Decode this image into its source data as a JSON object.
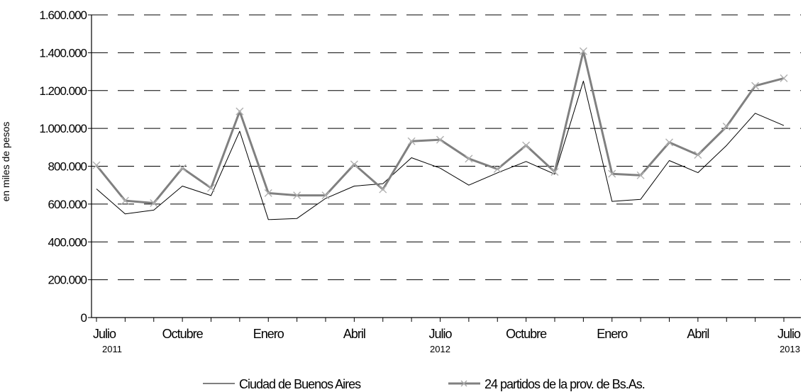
{
  "chart_data": {
    "type": "line",
    "title": "",
    "ylabel": "en miles de pesos",
    "xlabel": "",
    "ylim": [
      0,
      1600000
    ],
    "yticks": [
      0,
      200000,
      400000,
      600000,
      800000,
      1000000,
      1200000,
      1400000,
      1600000
    ],
    "ytick_labels": [
      "0",
      "200.000",
      "400.000",
      "600.000",
      "800.000",
      "1.000.000",
      "1.200.000",
      "1.400.000",
      "1.600.000"
    ],
    "x": [
      "2011-07",
      "2011-08",
      "2011-09",
      "2011-10",
      "2011-11",
      "2011-12",
      "2012-01",
      "2012-02",
      "2012-03",
      "2012-04",
      "2012-05",
      "2012-06",
      "2012-07",
      "2012-08",
      "2012-09",
      "2012-10",
      "2012-11",
      "2012-12",
      "2013-01",
      "2013-02",
      "2013-03",
      "2013-04",
      "2013-05",
      "2013-06",
      "2013-07"
    ],
    "x_tick_labels": [
      {
        "index": 0,
        "label": "Julio",
        "year": "2011"
      },
      {
        "index": 3,
        "label": "Octubre",
        "year": ""
      },
      {
        "index": 6,
        "label": "Enero",
        "year": ""
      },
      {
        "index": 9,
        "label": "Abril",
        "year": ""
      },
      {
        "index": 12,
        "label": "Julio",
        "year": "2012"
      },
      {
        "index": 15,
        "label": "Octubre",
        "year": ""
      },
      {
        "index": 18,
        "label": "Enero",
        "year": ""
      },
      {
        "index": 21,
        "label": "Abril",
        "year": ""
      },
      {
        "index": 24,
        "label": "Julio",
        "year": "2013"
      }
    ],
    "grid": "horizontal dashed",
    "legend_position": "bottom",
    "series": [
      {
        "name": "Ciudad de Buenos Aires",
        "color": "#000000",
        "marker": "none",
        "values": [
          680000,
          548000,
          568000,
          695000,
          645000,
          985000,
          518000,
          524000,
          630000,
          695000,
          708000,
          845000,
          790000,
          700000,
          765000,
          825000,
          758000,
          1250000,
          614000,
          625000,
          830000,
          766000,
          910000,
          1080000,
          1015000
        ]
      },
      {
        "name": "24 partidos de la prov. de Bs.As.",
        "color": "#808080",
        "marker": "x",
        "values": [
          805000,
          618000,
          605000,
          790000,
          685000,
          1090000,
          658000,
          646000,
          646000,
          810000,
          678000,
          932000,
          940000,
          840000,
          785000,
          910000,
          770000,
          1408000,
          760000,
          752000,
          926000,
          860000,
          1010000,
          1225000,
          1265000
        ]
      }
    ]
  }
}
